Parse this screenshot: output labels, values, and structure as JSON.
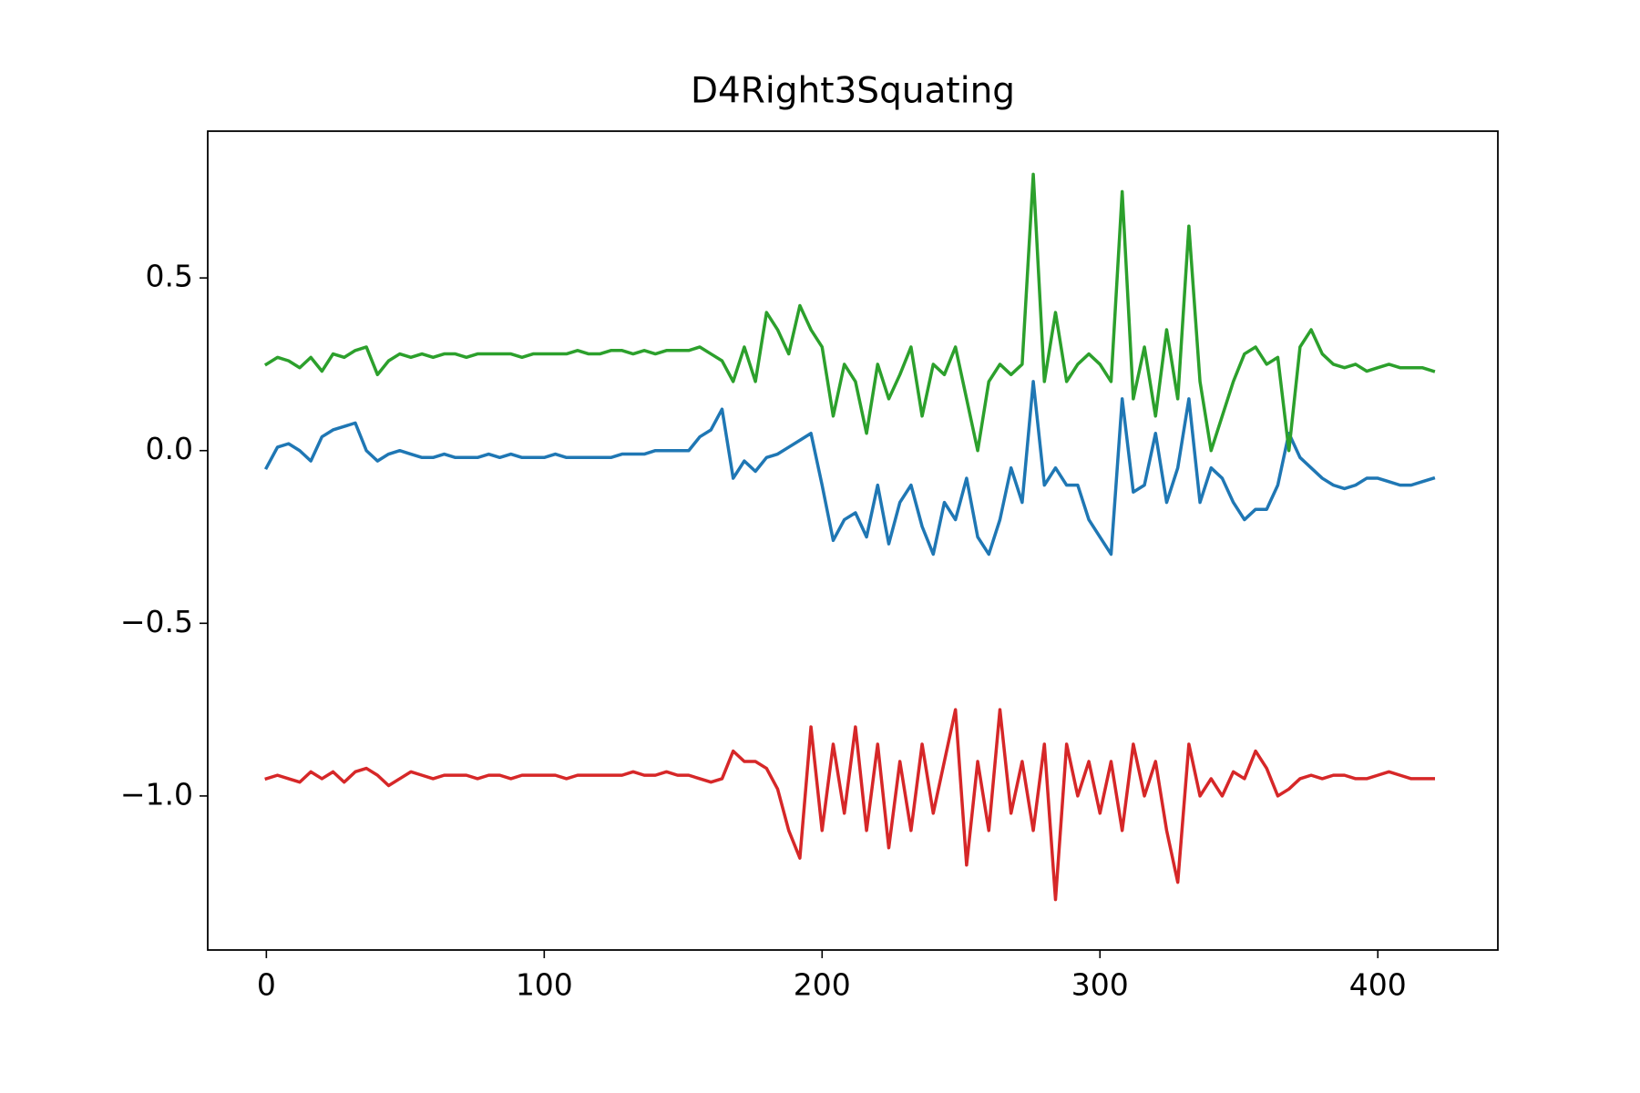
{
  "chart_data": {
    "type": "line",
    "title": "D4Right3Squating",
    "x": [
      0,
      4,
      8,
      12,
      16,
      20,
      24,
      28,
      32,
      36,
      40,
      44,
      48,
      52,
      56,
      60,
      64,
      68,
      72,
      76,
      80,
      84,
      88,
      92,
      96,
      100,
      104,
      108,
      112,
      116,
      120,
      124,
      128,
      132,
      136,
      140,
      144,
      148,
      152,
      156,
      160,
      164,
      168,
      172,
      176,
      180,
      184,
      188,
      192,
      196,
      200,
      204,
      208,
      212,
      216,
      220,
      224,
      228,
      232,
      236,
      240,
      244,
      248,
      252,
      256,
      260,
      264,
      268,
      272,
      276,
      280,
      284,
      288,
      292,
      296,
      300,
      304,
      308,
      312,
      316,
      320,
      324,
      328,
      332,
      336,
      340,
      344,
      348,
      352,
      356,
      360,
      364,
      368,
      372,
      376,
      380,
      384,
      388,
      392,
      396,
      400,
      404,
      408,
      412,
      416,
      420
    ],
    "series": [
      {
        "color": "#1f77b4",
        "values": [
          -0.05,
          0.01,
          0.02,
          0.0,
          -0.03,
          0.04,
          0.06,
          0.07,
          0.08,
          0.0,
          -0.03,
          -0.01,
          0.0,
          -0.01,
          -0.02,
          -0.02,
          -0.01,
          -0.02,
          -0.02,
          -0.02,
          -0.01,
          -0.02,
          -0.01,
          -0.02,
          -0.02,
          -0.02,
          -0.01,
          -0.02,
          -0.02,
          -0.02,
          -0.02,
          -0.02,
          -0.01,
          -0.01,
          -0.01,
          0.0,
          0.0,
          0.0,
          0.0,
          0.04,
          0.06,
          0.12,
          -0.08,
          -0.03,
          -0.06,
          -0.02,
          -0.01,
          0.01,
          0.03,
          0.05,
          -0.1,
          -0.26,
          -0.2,
          -0.18,
          -0.25,
          -0.1,
          -0.27,
          -0.15,
          -0.1,
          -0.22,
          -0.3,
          -0.15,
          -0.2,
          -0.08,
          -0.25,
          -0.3,
          -0.2,
          -0.05,
          -0.15,
          0.2,
          -0.1,
          -0.05,
          -0.1,
          -0.1,
          -0.2,
          -0.25,
          -0.3,
          0.15,
          -0.12,
          -0.1,
          0.05,
          -0.15,
          -0.05,
          0.15,
          -0.15,
          -0.05,
          -0.08,
          -0.15,
          -0.2,
          -0.17,
          -0.17,
          -0.1,
          0.05,
          -0.02,
          -0.05,
          -0.08,
          -0.1,
          -0.11,
          -0.1,
          -0.08,
          -0.08,
          -0.09,
          -0.1,
          -0.1,
          -0.09,
          -0.08
        ]
      },
      {
        "color": "#2ca02c",
        "values": [
          0.25,
          0.27,
          0.26,
          0.24,
          0.27,
          0.23,
          0.28,
          0.27,
          0.29,
          0.3,
          0.22,
          0.26,
          0.28,
          0.27,
          0.28,
          0.27,
          0.28,
          0.28,
          0.27,
          0.28,
          0.28,
          0.28,
          0.28,
          0.27,
          0.28,
          0.28,
          0.28,
          0.28,
          0.29,
          0.28,
          0.28,
          0.29,
          0.29,
          0.28,
          0.29,
          0.28,
          0.29,
          0.29,
          0.29,
          0.3,
          0.28,
          0.26,
          0.2,
          0.3,
          0.2,
          0.4,
          0.35,
          0.28,
          0.42,
          0.35,
          0.3,
          0.1,
          0.25,
          0.2,
          0.05,
          0.25,
          0.15,
          0.22,
          0.3,
          0.1,
          0.25,
          0.22,
          0.3,
          0.15,
          0.0,
          0.2,
          0.25,
          0.22,
          0.25,
          0.8,
          0.2,
          0.4,
          0.2,
          0.25,
          0.28,
          0.25,
          0.2,
          0.75,
          0.15,
          0.3,
          0.1,
          0.35,
          0.15,
          0.65,
          0.2,
          0.0,
          0.1,
          0.2,
          0.28,
          0.3,
          0.25,
          0.27,
          0.0,
          0.3,
          0.35,
          0.28,
          0.25,
          0.24,
          0.25,
          0.23,
          0.24,
          0.25,
          0.24,
          0.24,
          0.24,
          0.23
        ]
      },
      {
        "color": "#d62728",
        "values": [
          -0.95,
          -0.94,
          -0.95,
          -0.96,
          -0.93,
          -0.95,
          -0.93,
          -0.96,
          -0.93,
          -0.92,
          -0.94,
          -0.97,
          -0.95,
          -0.93,
          -0.94,
          -0.95,
          -0.94,
          -0.94,
          -0.94,
          -0.95,
          -0.94,
          -0.94,
          -0.95,
          -0.94,
          -0.94,
          -0.94,
          -0.94,
          -0.95,
          -0.94,
          -0.94,
          -0.94,
          -0.94,
          -0.94,
          -0.93,
          -0.94,
          -0.94,
          -0.93,
          -0.94,
          -0.94,
          -0.95,
          -0.96,
          -0.95,
          -0.87,
          -0.9,
          -0.9,
          -0.92,
          -0.98,
          -1.1,
          -1.18,
          -0.8,
          -1.1,
          -0.85,
          -1.05,
          -0.8,
          -1.1,
          -0.85,
          -1.15,
          -0.9,
          -1.1,
          -0.85,
          -1.05,
          -0.9,
          -0.75,
          -1.2,
          -0.9,
          -1.1,
          -0.75,
          -1.05,
          -0.9,
          -1.1,
          -0.85,
          -1.3,
          -0.85,
          -1.0,
          -0.9,
          -1.05,
          -0.9,
          -1.1,
          -0.85,
          -1.0,
          -0.9,
          -1.1,
          -1.25,
          -0.85,
          -1.0,
          -0.95,
          -1.0,
          -0.93,
          -0.95,
          -0.87,
          -0.92,
          -1.0,
          -0.98,
          -0.95,
          -0.94,
          -0.95,
          -0.94,
          -0.94,
          -0.95,
          -0.95,
          -0.94,
          -0.93,
          -0.94,
          -0.95,
          -0.95,
          -0.95
        ]
      }
    ],
    "xlim": [
      -21.1,
      443.2
    ],
    "ylim": [
      -1.446,
      0.925
    ],
    "xticks": [
      0,
      100,
      200,
      300,
      400
    ],
    "yticks": [
      {
        "value": -1.0,
        "label": "−1.0"
      },
      {
        "value": -0.5,
        "label": "−0.5"
      },
      {
        "value": 0.0,
        "label": "0.0"
      },
      {
        "value": 0.5,
        "label": "0.5"
      }
    ],
    "grid": false
  }
}
